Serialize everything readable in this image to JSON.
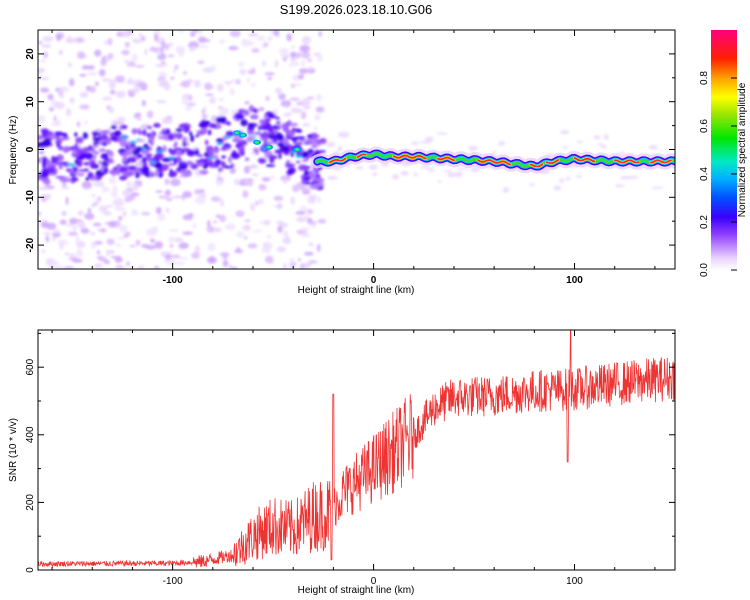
{
  "title": "S199.2026.023.18.10.G06",
  "chart_data": [
    {
      "type": "heatmap",
      "xlabel": "Height of straight line (km)",
      "ylabel": "Frequency (Hz)",
      "xlim": [
        -167,
        150
      ],
      "ylim": [
        -25,
        25
      ],
      "xticks": [
        -100,
        0,
        100
      ],
      "yticks": [
        -20,
        -10,
        0,
        10,
        20
      ],
      "colorbar": {
        "label": "Normalized spectral amplitude",
        "range": [
          0,
          1
        ],
        "ticks": [
          "0.0",
          "0.2",
          "0.4",
          "0.6",
          "0.8"
        ]
      },
      "ridge": {
        "description_x": [
          -167,
          -120,
          -80,
          -60,
          -40,
          -30,
          -20,
          -10,
          0,
          10,
          20,
          40,
          60,
          80,
          90,
          100,
          120,
          150
        ],
        "freq_hz": [
          -1.5,
          -0.5,
          0.5,
          3.5,
          0,
          -2.5,
          -2.5,
          -1.5,
          -1,
          -1.5,
          -1.5,
          -2,
          -2.5,
          -3.5,
          -2.5,
          -2,
          -2.5,
          -2.5
        ]
      }
    },
    {
      "type": "line",
      "xlabel": "Height of straight line (km)",
      "ylabel": "SNR (10 * v/v)",
      "xlim": [
        -167,
        150
      ],
      "ylim": [
        0,
        710
      ],
      "xticks": [
        -100,
        0,
        100
      ],
      "yticks": [
        0,
        200,
        400,
        600
      ],
      "series": [
        {
          "name": "SNR",
          "color": "#ee3333",
          "trend_x": [
            -167,
            -100,
            -85,
            -70,
            -60,
            -50,
            -40,
            -30,
            -22,
            -15,
            0,
            10,
            20,
            30,
            40,
            60,
            80,
            100,
            120,
            150
          ],
          "trend_y": [
            18,
            20,
            25,
            45,
            100,
            130,
            120,
            160,
            170,
            230,
            300,
            350,
            400,
            480,
            510,
            515,
            530,
            535,
            550,
            570
          ]
        }
      ]
    }
  ]
}
